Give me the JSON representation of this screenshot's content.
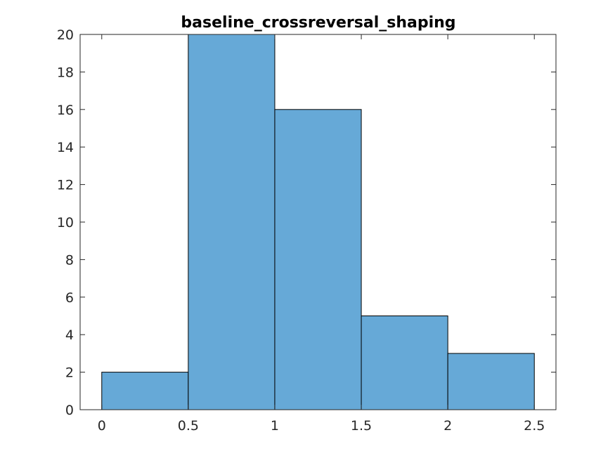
{
  "chart_data": {
    "type": "bar",
    "title": "baseline_crossreversal_shaping",
    "xlabel": "",
    "ylabel": "",
    "bins": [
      {
        "start": 0,
        "end": 0.5,
        "count": 2
      },
      {
        "start": 0.5,
        "end": 1,
        "count": 20
      },
      {
        "start": 1,
        "end": 1.5,
        "count": 16
      },
      {
        "start": 1.5,
        "end": 2,
        "count": 5
      },
      {
        "start": 2,
        "end": 2.5,
        "count": 3
      }
    ],
    "xlim": [
      -0.125,
      2.625
    ],
    "ylim": [
      0,
      20
    ],
    "xticks": [
      0,
      0.5,
      1,
      1.5,
      2,
      2.5
    ],
    "xtick_labels": [
      "0",
      "0.5",
      "1",
      "1.5",
      "2",
      "2.5"
    ],
    "yticks": [
      0,
      2,
      4,
      6,
      8,
      10,
      12,
      14,
      16,
      18,
      20
    ],
    "ytick_labels": [
      "0",
      "2",
      "4",
      "6",
      "8",
      "10",
      "12",
      "14",
      "16",
      "18",
      "20"
    ],
    "bar_color": "#66a9d7",
    "edge_color": "#000000",
    "grid": false,
    "legend": "none"
  }
}
